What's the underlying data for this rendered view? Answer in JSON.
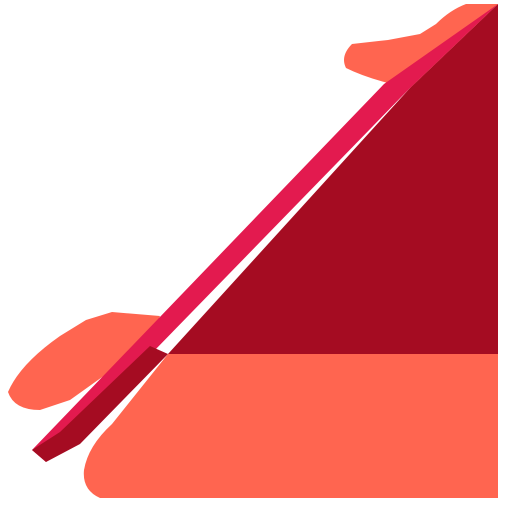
{
  "colors": {
    "background": "#ffffff",
    "dark_red": "#A50C22",
    "crimson": "#E31A4F",
    "coral": "#FF6550"
  },
  "icon": "arrow-icon"
}
